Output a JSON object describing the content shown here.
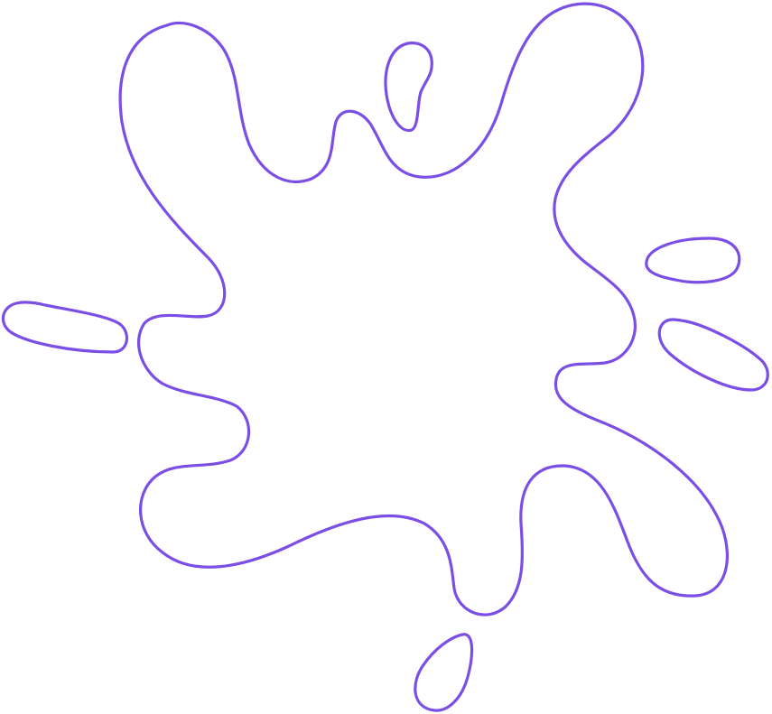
{
  "graphic": {
    "name": "splat-outline",
    "stroke_color": "#7b4ee6",
    "fill_color": "none",
    "background": "#ffffff",
    "parts": [
      "main-blob",
      "top-droplet",
      "left-droplet",
      "right-upper-droplet",
      "right-lower-droplet",
      "bottom-droplet"
    ]
  }
}
